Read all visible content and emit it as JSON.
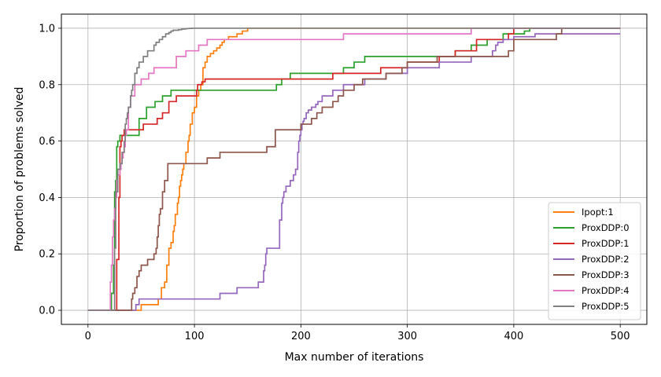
{
  "chart_data": {
    "type": "line",
    "step": true,
    "title": "",
    "xlabel": "Max number of iterations",
    "ylabel": "Proportion of problems solved",
    "xlim": [
      -25,
      525
    ],
    "ylim": [
      -0.05,
      1.05
    ],
    "xticks": [
      0,
      100,
      200,
      300,
      400,
      500
    ],
    "xtick_labels": [
      "0",
      "100",
      "200",
      "300",
      "400",
      "500"
    ],
    "yticks": [
      0.0,
      0.2,
      0.4,
      0.6,
      0.8,
      1.0
    ],
    "ytick_labels": [
      "0.0",
      "0.2",
      "0.4",
      "0.6",
      "0.8",
      "1.0"
    ],
    "grid": true,
    "legend_position": "lower-right",
    "series": [
      {
        "name": "Ipopt:1",
        "color": "#ff7f0e",
        "x": [
          0,
          46,
          50,
          66,
          69,
          72,
          74,
          76,
          78,
          80,
          81,
          82,
          84,
          85,
          86,
          87,
          88,
          89,
          90,
          92,
          94,
          95,
          96,
          98,
          100,
          102,
          104,
          106,
          108,
          110,
          112,
          115,
          118,
          121,
          124,
          126,
          128,
          132,
          140,
          145,
          150,
          500
        ],
        "y": [
          0,
          0,
          0.02,
          0.04,
          0.08,
          0.1,
          0.16,
          0.22,
          0.24,
          0.28,
          0.3,
          0.34,
          0.38,
          0.4,
          0.44,
          0.46,
          0.48,
          0.5,
          0.52,
          0.56,
          0.6,
          0.62,
          0.66,
          0.7,
          0.72,
          0.76,
          0.78,
          0.8,
          0.86,
          0.88,
          0.9,
          0.91,
          0.92,
          0.93,
          0.94,
          0.95,
          0.96,
          0.97,
          0.98,
          0.99,
          1.0,
          1.0
        ]
      },
      {
        "name": "ProxDDP:0",
        "color": "#2ca02c",
        "x": [
          0,
          20,
          22,
          24,
          25,
          26,
          27,
          28,
          30,
          48,
          55,
          63,
          70,
          78,
          100,
          130,
          177,
          182,
          190,
          240,
          245,
          250,
          260,
          300,
          345,
          350,
          360,
          370,
          375,
          380,
          390,
          400,
          410,
          415,
          500
        ],
        "y": [
          0,
          0,
          0.06,
          0.16,
          0.42,
          0.46,
          0.58,
          0.6,
          0.62,
          0.68,
          0.72,
          0.74,
          0.76,
          0.78,
          0.78,
          0.78,
          0.8,
          0.82,
          0.84,
          0.86,
          0.86,
          0.88,
          0.9,
          0.9,
          0.92,
          0.92,
          0.94,
          0.94,
          0.96,
          0.96,
          0.98,
          0.98,
          0.99,
          1.0,
          1.0
        ]
      },
      {
        "name": "ProxDDP:1",
        "color": "#d62728",
        "x": [
          0,
          25,
          27,
          29,
          30,
          31,
          32,
          33,
          34,
          36,
          38,
          52,
          65,
          70,
          76,
          83,
          95,
          102,
          103,
          105,
          107,
          110,
          200,
          230,
          240,
          250,
          275,
          280,
          290,
          300,
          330,
          340,
          345,
          350,
          365,
          370,
          380,
          395,
          400,
          500
        ],
        "y": [
          0,
          0,
          0.18,
          0.4,
          0.58,
          0.6,
          0.62,
          0.62,
          0.64,
          0.64,
          0.64,
          0.66,
          0.68,
          0.7,
          0.74,
          0.76,
          0.76,
          0.78,
          0.8,
          0.8,
          0.81,
          0.82,
          0.82,
          0.84,
          0.84,
          0.84,
          0.86,
          0.86,
          0.86,
          0.88,
          0.9,
          0.9,
          0.92,
          0.92,
          0.96,
          0.96,
          0.96,
          0.98,
          1.0,
          1.0
        ]
      },
      {
        "name": "ProxDDP:2",
        "color": "#9467bd",
        "x": [
          0,
          42,
          45,
          48,
          124,
          140,
          160,
          165,
          166,
          167,
          168,
          180,
          182,
          183,
          184,
          186,
          190,
          193,
          195,
          197,
          198,
          199,
          200,
          201,
          202,
          203,
          204,
          205,
          207,
          210,
          214,
          216,
          220,
          230,
          240,
          260,
          280,
          300,
          330,
          360,
          380,
          383,
          385,
          390,
          400,
          420,
          440,
          500
        ],
        "y": [
          0,
          0,
          0.02,
          0.04,
          0.06,
          0.08,
          0.1,
          0.14,
          0.16,
          0.2,
          0.22,
          0.32,
          0.38,
          0.4,
          0.42,
          0.44,
          0.46,
          0.48,
          0.5,
          0.56,
          0.6,
          0.62,
          0.64,
          0.66,
          0.67,
          0.68,
          0.68,
          0.7,
          0.71,
          0.72,
          0.73,
          0.74,
          0.76,
          0.78,
          0.8,
          0.82,
          0.84,
          0.86,
          0.88,
          0.9,
          0.92,
          0.94,
          0.95,
          0.96,
          0.97,
          0.98,
          0.98,
          0.98
        ]
      },
      {
        "name": "ProxDDP:3",
        "color": "#8c564b",
        "x": [
          0,
          39,
          41,
          42,
          44,
          46,
          48,
          50,
          56,
          62,
          64,
          65,
          66,
          67,
          68,
          70,
          72,
          75,
          112,
          124,
          168,
          176,
          200,
          210,
          215,
          220,
          230,
          235,
          240,
          250,
          258,
          262,
          280,
          295,
          300,
          328,
          340,
          360,
          390,
          395,
          400,
          440,
          445,
          500
        ],
        "y": [
          0,
          0,
          0.04,
          0.06,
          0.08,
          0.12,
          0.14,
          0.16,
          0.18,
          0.2,
          0.22,
          0.26,
          0.3,
          0.34,
          0.36,
          0.42,
          0.46,
          0.52,
          0.54,
          0.56,
          0.58,
          0.64,
          0.66,
          0.68,
          0.7,
          0.72,
          0.74,
          0.76,
          0.78,
          0.8,
          0.82,
          0.82,
          0.84,
          0.86,
          0.88,
          0.9,
          0.9,
          0.9,
          0.9,
          0.92,
          0.96,
          0.98,
          1.0,
          1.0
        ]
      },
      {
        "name": "ProxDDP:4",
        "color": "#e377c2",
        "x": [
          0,
          20,
          21,
          22,
          23,
          24,
          25,
          26,
          27,
          28,
          30,
          31,
          32,
          33,
          34,
          35,
          36,
          38,
          40,
          44,
          50,
          57,
          62,
          83,
          92,
          104,
          112,
          175,
          240,
          245,
          280,
          360,
          362,
          500
        ],
        "y": [
          0,
          0,
          0.1,
          0.16,
          0.26,
          0.32,
          0.36,
          0.4,
          0.46,
          0.48,
          0.5,
          0.52,
          0.54,
          0.56,
          0.58,
          0.62,
          0.64,
          0.72,
          0.76,
          0.8,
          0.82,
          0.84,
          0.86,
          0.9,
          0.92,
          0.94,
          0.96,
          0.96,
          0.98,
          0.98,
          0.98,
          1.0,
          1.0,
          1.0
        ]
      },
      {
        "name": "ProxDDP:5",
        "color": "#7f7f7f",
        "x": [
          0,
          24,
          25,
          26,
          28,
          30,
          32,
          34,
          35,
          36,
          37,
          38,
          40,
          41,
          42,
          44,
          46,
          48,
          52,
          55,
          56,
          59,
          62,
          64,
          67,
          70,
          73,
          76,
          78,
          80,
          85,
          88,
          91,
          93,
          95,
          98,
          100,
          500
        ],
        "y": [
          0,
          0,
          0.22,
          0.42,
          0.5,
          0.52,
          0.56,
          0.6,
          0.66,
          0.68,
          0.7,
          0.72,
          0.76,
          0.78,
          0.8,
          0.84,
          0.86,
          0.88,
          0.9,
          0.9,
          0.92,
          0.92,
          0.94,
          0.95,
          0.96,
          0.97,
          0.98,
          0.985,
          0.99,
          0.993,
          0.995,
          0.997,
          0.998,
          0.999,
          0.9995,
          1.0,
          1.0,
          1.0
        ]
      }
    ]
  }
}
